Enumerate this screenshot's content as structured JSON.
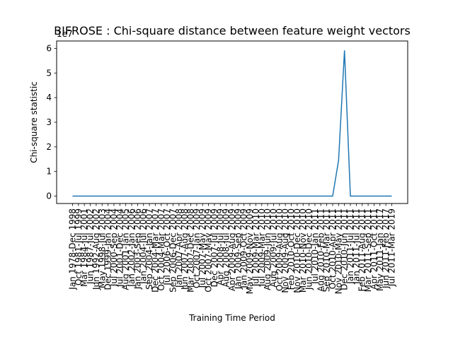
{
  "chart_data": {
    "type": "line",
    "title": "BIFROSE : Chi-square distance between feature weight vectors",
    "xlabel": "Training Time Period",
    "ylabel": "Chi-square statistic",
    "offset_label": "1e7",
    "ylim": [
      -0.3,
      6.3
    ],
    "y_ticks": [
      0,
      1,
      2,
      3,
      4,
      5,
      6
    ],
    "y_tick_labels": [
      "0",
      "1",
      "2",
      "3",
      "4",
      "5",
      "6"
    ],
    "grid": false,
    "legend": "none",
    "line_color": "#1f77b4",
    "categories": [
      "Jan 1978-Dec 1998",
      "Oct 1981-Jul 1999",
      "Mar 1984-Jul 2001",
      "Jun 1987-Jul 2002",
      "Jun 1992-Aug 2002",
      "May 1998-Jul 2003",
      "Dec 1999-Jan 2004",
      "Jul 2000-Sep 2004",
      "Jul 2001-Dec 2004",
      "Aug 2001-Jan 2005",
      "Jan 2002-Jan 2006",
      "Jan 2003-Sep 2006",
      "Jan 2004-Jul 2006",
      "Sep 2004-Jan 2007",
      "Dec 2004-Mar 2007",
      "Oct 2004-Mar 2007",
      "Jul 2006-Oct 2007",
      "Sep 2006-Dec 2007",
      "Jan 2007-Apr 2008",
      "Jun 2007-Aug 2008",
      "Mar 2007-Dec 2008",
      "Oct 2007-Jan 2009",
      "Jul 2007-May 2009",
      "Oct 2007-May 2009",
      "Dec 2007-Jul 2009",
      "Apr 2008-Jul 2009",
      "Aug 2008-Jul 2009",
      "Apr 2009-Aug 2009",
      "Jan 2009-Sep 2009",
      "Jan 2009-Oct 2009",
      "May 2009-Nov 2009",
      "Jul 2009-Mar 2010",
      "Jul 2009-Mar 2010",
      "Aug 2009-Jun 2010",
      "Aug 2009-Jul 2010",
      "Oct 2009-Aug 2010",
      "Nov 2009-Aug 2010",
      "Feb 2010-Oct 2010",
      "Nov 2010-Dec 2010",
      "Mar 2010-Nov 2010",
      "Jun 2010-Dec 2010",
      "Jul 2010-Jan 2011",
      "Aug 2010-Feb 2011",
      "Sep 2010-Mar 2011",
      "Oct 2010-Apr 2011",
      "Nov 2010-May 2011",
      "Dec 2010-Jun 2011",
      "Jan 2011-Jul 2011",
      "Jan 2011-Jul 2011",
      "Feb 2011-Aug 2011",
      "Mar 2011-Sep 2011",
      "Apr 2011-Oct 2011",
      "May 2011-Jan 2017",
      "Jun 2011-Feb 2017",
      "Jul 2011-Mar 2019"
    ],
    "values": [
      0,
      0,
      0,
      0,
      0,
      0,
      0,
      0,
      0,
      0,
      0,
      0,
      0,
      0,
      0,
      0,
      0,
      0,
      0,
      0,
      0,
      0,
      0,
      0,
      0,
      0,
      0,
      0,
      0,
      0,
      0,
      0,
      0,
      0,
      0,
      0,
      0,
      0,
      0,
      0,
      0,
      0,
      0,
      0,
      0,
      1.45,
      5.92,
      0,
      0,
      0,
      0,
      0,
      0,
      0,
      0
    ]
  }
}
